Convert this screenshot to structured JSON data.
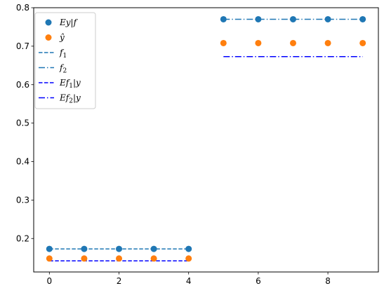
{
  "chart_data": {
    "type": "scatter",
    "title": "",
    "xlabel": "",
    "ylabel": "",
    "xlim": [
      -0.45,
      9.45
    ],
    "ylim": [
      0.113,
      0.8
    ],
    "xticks": [
      0,
      2,
      4,
      6,
      8
    ],
    "yticks": [
      0.2,
      0.3,
      0.4,
      0.5,
      0.6,
      0.7,
      0.8
    ],
    "grid": false,
    "legend_position": "top-left",
    "series": [
      {
        "id": "ey_f",
        "name": "Ey|f",
        "kind": "points",
        "color": "#1f77b4",
        "x": [
          0,
          1,
          2,
          3,
          4,
          5,
          6,
          7,
          8,
          9
        ],
        "y": [
          0.173,
          0.173,
          0.173,
          0.173,
          0.173,
          0.77,
          0.77,
          0.77,
          0.77,
          0.77
        ]
      },
      {
        "id": "y_hat",
        "name": "ŷ",
        "kind": "points",
        "color": "#ff7f0e",
        "x": [
          0,
          1,
          2,
          3,
          4,
          5,
          6,
          7,
          8,
          9
        ],
        "y": [
          0.148,
          0.148,
          0.148,
          0.148,
          0.148,
          0.708,
          0.708,
          0.708,
          0.708,
          0.708
        ]
      },
      {
        "id": "f1",
        "name": "f1",
        "kind": "line",
        "dash": "dashed",
        "color": "#1f77b4",
        "x": [
          0,
          4
        ],
        "y": [
          0.173,
          0.173
        ]
      },
      {
        "id": "f2",
        "name": "f2",
        "kind": "line",
        "dash": "dashdot",
        "color": "#1f77b4",
        "x": [
          5,
          9
        ],
        "y": [
          0.77,
          0.77
        ]
      },
      {
        "id": "ef1_y",
        "name": "Ef1|y",
        "kind": "line",
        "dash": "dashed",
        "color": "#0000ff",
        "x": [
          0,
          4
        ],
        "y": [
          0.142,
          0.142
        ]
      },
      {
        "id": "ef2_y",
        "name": "Ef2|y",
        "kind": "line",
        "dash": "dashdot",
        "color": "#0000ff",
        "x": [
          5,
          9
        ],
        "y": [
          0.673,
          0.673
        ]
      }
    ],
    "legend": [
      {
        "series": "ey_f",
        "main": "Ey|f",
        "sub": "",
        "rest": ""
      },
      {
        "series": "y_hat",
        "main": "ŷ",
        "sub": "",
        "rest": ""
      },
      {
        "series": "f1",
        "main": "f",
        "sub": "1",
        "rest": ""
      },
      {
        "series": "f2",
        "main": "f",
        "sub": "2",
        "rest": ""
      },
      {
        "series": "ef1_y",
        "main": "Ef",
        "sub": "1",
        "rest": "|y"
      },
      {
        "series": "ef2_y",
        "main": "Ef",
        "sub": "2",
        "rest": "|y"
      }
    ]
  }
}
